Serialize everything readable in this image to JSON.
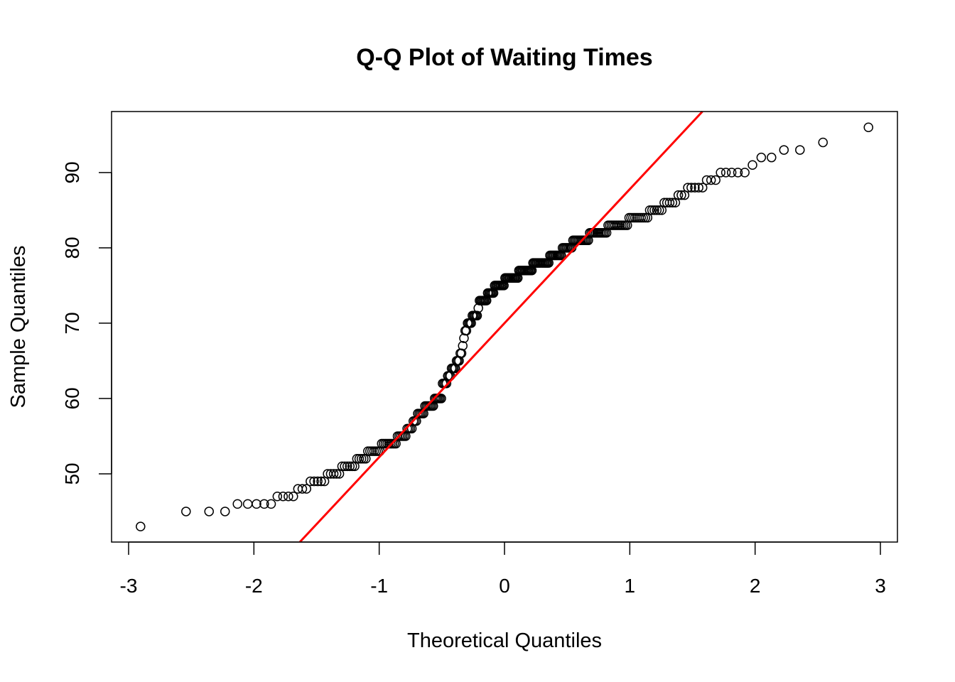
{
  "chart_data": {
    "type": "scatter",
    "title": "Q-Q Plot of Waiting Times",
    "xlabel": "Theoretical Quantiles",
    "ylabel": "Sample Quantiles",
    "xlim": [
      -3.136,
      3.136
    ],
    "ylim": [
      40.94,
      98.1
    ],
    "x_ticks": [
      -3,
      -2,
      -1,
      0,
      1,
      2,
      3
    ],
    "x_tick_labels": [
      "-3",
      "-2",
      "-1",
      "0",
      "1",
      "2",
      "3"
    ],
    "y_ticks": [
      50,
      60,
      70,
      80,
      90
    ],
    "y_tick_labels": [
      "50",
      "60",
      "70",
      "80",
      "90"
    ],
    "grid": false,
    "sample_value_counts": [
      [
        43,
        1
      ],
      [
        45,
        3
      ],
      [
        46,
        5
      ],
      [
        47,
        4
      ],
      [
        48,
        3
      ],
      [
        49,
        5
      ],
      [
        50,
        5
      ],
      [
        51,
        6
      ],
      [
        52,
        5
      ],
      [
        53,
        7
      ],
      [
        54,
        9
      ],
      [
        55,
        6
      ],
      [
        56,
        4
      ],
      [
        57,
        3
      ],
      [
        58,
        5
      ],
      [
        59,
        7
      ],
      [
        60,
        6
      ],
      [
        62,
        4
      ],
      [
        63,
        3
      ],
      [
        64,
        4
      ],
      [
        65,
        3
      ],
      [
        66,
        2
      ],
      [
        67,
        1
      ],
      [
        68,
        1
      ],
      [
        69,
        2
      ],
      [
        70,
        4
      ],
      [
        71,
        5
      ],
      [
        72,
        1
      ],
      [
        73,
        7
      ],
      [
        74,
        6
      ],
      [
        75,
        9
      ],
      [
        76,
        12
      ],
      [
        77,
        12
      ],
      [
        78,
        14
      ],
      [
        79,
        10
      ],
      [
        80,
        8
      ],
      [
        81,
        12
      ],
      [
        82,
        12
      ],
      [
        83,
        12
      ],
      [
        84,
        10
      ],
      [
        85,
        6
      ],
      [
        86,
        5
      ],
      [
        87,
        3
      ],
      [
        88,
        5
      ],
      [
        89,
        3
      ],
      [
        90,
        5
      ],
      [
        91,
        1
      ],
      [
        92,
        2
      ],
      [
        93,
        2
      ],
      [
        94,
        1
      ],
      [
        96,
        1
      ]
    ],
    "reference_line": {
      "type": "qqline",
      "through_quartiles": [
        58,
        82
      ],
      "color": "#FF0000"
    },
    "point_color": "#000000"
  }
}
